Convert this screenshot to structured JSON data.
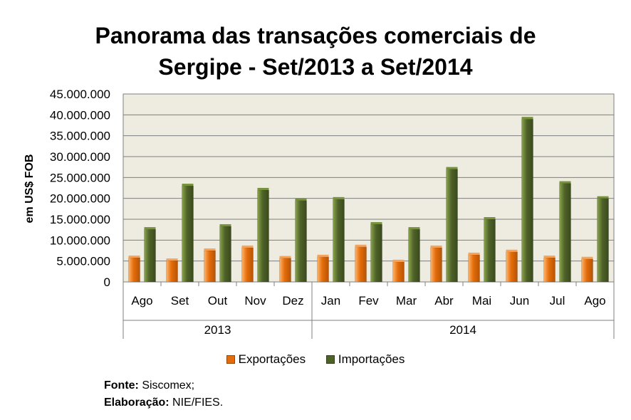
{
  "chart_data": {
    "type": "bar",
    "title": [
      "Panorama das transações comerciais de",
      "Sergipe - Set/2013 a Set/2014"
    ],
    "ylabel": "em US$ FOB",
    "ylim": [
      0,
      45000000
    ],
    "yticks": [
      "0",
      "5.000.000",
      "10.000.000",
      "15.000.000",
      "20.000.000",
      "25.000.000",
      "30.000.000",
      "35.000.000",
      "40.000.000",
      "45.000.000"
    ],
    "categories": [
      "Ago",
      "Set",
      "Out",
      "Nov",
      "Dez",
      "Jan",
      "Fev",
      "Mar",
      "Abr",
      "Mai",
      "Jun",
      "Jul",
      "Ago"
    ],
    "groups": [
      {
        "label": "2013",
        "count": 5
      },
      {
        "label": "2014",
        "count": 8
      }
    ],
    "series": [
      {
        "name": "Exportações",
        "color": "#e46c0a",
        "values": [
          5800000,
          5100000,
          7500000,
          8200000,
          5700000,
          6000000,
          8400000,
          4800000,
          8200000,
          6500000,
          7200000,
          5800000,
          5500000
        ]
      },
      {
        "name": "Importações",
        "color": "#4f6228",
        "values": [
          12600000,
          23000000,
          13300000,
          22000000,
          19500000,
          19800000,
          13800000,
          12600000,
          27000000,
          15000000,
          39000000,
          23600000,
          20000000
        ]
      }
    ],
    "grid": true,
    "plot_background": "#eeece1",
    "legend": "bottom"
  },
  "footer": {
    "source_label": "Fonte:",
    "source_value": "Siscomex;",
    "author_label": "Elaboração:",
    "author_value": "NIE/FIES."
  }
}
